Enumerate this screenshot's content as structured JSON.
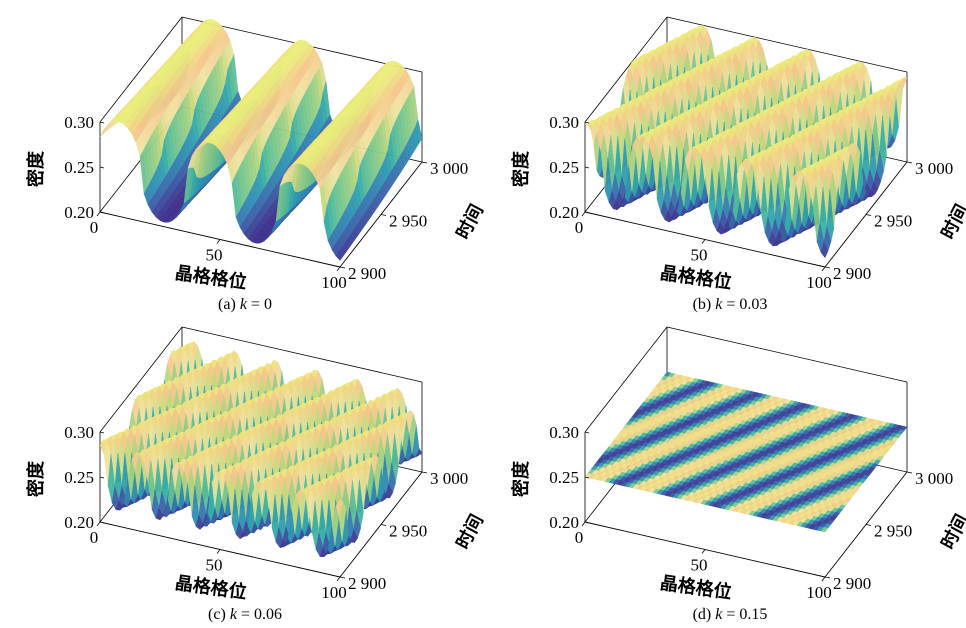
{
  "chart_data": [
    {
      "type": "surface",
      "caption": "(a) k = 0",
      "caption_prefix": "(a) ",
      "caption_var": "k",
      "caption_value": " = 0",
      "k": 0,
      "xlabel": "晶格格位",
      "ylabel": "时间",
      "zlabel": "密度",
      "xlim": [
        0,
        100
      ],
      "ylim": [
        2900,
        3000
      ],
      "zlim": [
        0.2,
        0.3
      ],
      "xticks": [
        {
          "v": 0,
          "label": "0"
        },
        {
          "v": 50,
          "label": "50"
        },
        {
          "v": 100,
          "label": "100"
        }
      ],
      "yticks": [
        {
          "v": 2900,
          "label": "2 900"
        },
        {
          "v": 2950,
          "label": "2 950"
        },
        {
          "v": 3000,
          "label": "3 000"
        }
      ],
      "zticks": [
        {
          "v": 0.2,
          "label": "0.20"
        },
        {
          "v": 0.25,
          "label": "0.25"
        },
        {
          "v": 0.3,
          "label": "0.30"
        }
      ],
      "surface": {
        "mean": 0.255,
        "amplitude": 0.05,
        "wavelength": 38,
        "drift_per_time": 0.05,
        "phase": 0.3,
        "sharpness": 2.2
      }
    },
    {
      "type": "surface",
      "caption": "(b) k = 0.03",
      "caption_prefix": "(b) ",
      "caption_var": "k",
      "caption_value": " = 0.03",
      "k": 0.03,
      "xlabel": "晶格格位",
      "ylabel": "时间",
      "zlabel": "密度",
      "xlim": [
        0,
        100
      ],
      "ylim": [
        2900,
        3000
      ],
      "zlim": [
        0.2,
        0.3
      ],
      "xticks": [
        {
          "v": 0,
          "label": "0"
        },
        {
          "v": 50,
          "label": "50"
        },
        {
          "v": 100,
          "label": "100"
        }
      ],
      "yticks": [
        {
          "v": 2900,
          "label": "2 900"
        },
        {
          "v": 2950,
          "label": "2 950"
        },
        {
          "v": 3000,
          "label": "3 000"
        }
      ],
      "zticks": [
        {
          "v": 0.2,
          "label": "0.20"
        },
        {
          "v": 0.25,
          "label": "0.25"
        },
        {
          "v": 0.3,
          "label": "0.30"
        }
      ],
      "surface": {
        "mean": 0.255,
        "amplitude": 0.045,
        "wavelength": 22,
        "drift_per_time": 0.35,
        "phase": 1.1,
        "sharpness": 2.0
      }
    },
    {
      "type": "surface",
      "caption": "(c) k = 0.06",
      "caption_prefix": "(c) ",
      "caption_var": "k",
      "caption_value": " = 0.06",
      "k": 0.06,
      "xlabel": "晶格格位",
      "ylabel": "时间",
      "zlabel": "密度",
      "xlim": [
        0,
        100
      ],
      "ylim": [
        2900,
        3000
      ],
      "zlim": [
        0.2,
        0.3
      ],
      "xticks": [
        {
          "v": 0,
          "label": "0"
        },
        {
          "v": 50,
          "label": "50"
        },
        {
          "v": 100,
          "label": "100"
        }
      ],
      "yticks": [
        {
          "v": 2900,
          "label": "2 900"
        },
        {
          "v": 2950,
          "label": "2 950"
        },
        {
          "v": 3000,
          "label": "3 000"
        }
      ],
      "zticks": [
        {
          "v": 0.2,
          "label": "0.20"
        },
        {
          "v": 0.25,
          "label": "0.25"
        },
        {
          "v": 0.3,
          "label": "0.30"
        }
      ],
      "surface": {
        "mean": 0.252,
        "amplitude": 0.035,
        "wavelength": 17,
        "drift_per_time": 0.4,
        "phase": 2.0,
        "sharpness": 1.8
      }
    },
    {
      "type": "surface",
      "caption": "(d) k = 0.15",
      "caption_prefix": "(d) ",
      "caption_var": "k",
      "caption_value": " = 0.15",
      "k": 0.15,
      "xlabel": "晶格格位",
      "ylabel": "时间",
      "zlabel": "密度",
      "xlim": [
        0,
        100
      ],
      "ylim": [
        2900,
        3000
      ],
      "zlim": [
        0.2,
        0.3
      ],
      "xticks": [
        {
          "v": 0,
          "label": "0"
        },
        {
          "v": 50,
          "label": "50"
        },
        {
          "v": 100,
          "label": "100"
        }
      ],
      "yticks": [
        {
          "v": 2900,
          "label": "2 900"
        },
        {
          "v": 2950,
          "label": "2 950"
        },
        {
          "v": 3000,
          "label": "3 000"
        }
      ],
      "zticks": [
        {
          "v": 0.2,
          "label": "0.20"
        },
        {
          "v": 0.25,
          "label": "0.25"
        },
        {
          "v": 0.3,
          "label": "0.30"
        }
      ],
      "surface": {
        "mean": 0.25,
        "amplitude": 0.0,
        "color_amplitude": 0.045,
        "wavelength": 20,
        "drift_per_time": 0.45,
        "phase": 0.5,
        "sharpness": 1.0
      }
    }
  ],
  "colormap": [
    "#3b2a8a",
    "#3a5ea8",
    "#2f8fb4",
    "#35b0a6",
    "#7ec98a",
    "#c6d97d",
    "#f1e3a1",
    "#f6c58c",
    "#eaf07a"
  ]
}
